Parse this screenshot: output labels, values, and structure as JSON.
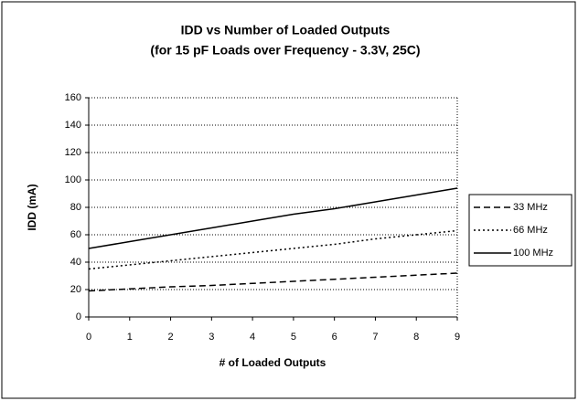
{
  "chart_data": {
    "type": "line",
    "title": "IDD vs Number of Loaded Outputs",
    "subtitle": "(for 15 pF Loads over Frequency - 3.3V, 25C)",
    "x_label": "# of Loaded Outputs",
    "y_label": "IDD (mA)",
    "x": [
      0,
      1,
      2,
      3,
      4,
      5,
      6,
      7,
      8,
      9
    ],
    "xlim": [
      0,
      9
    ],
    "xticks": [
      0,
      1,
      2,
      3,
      4,
      5,
      6,
      7,
      8,
      9
    ],
    "ylim": [
      0,
      160
    ],
    "yticks": [
      0,
      20,
      40,
      60,
      80,
      100,
      120,
      140,
      160
    ],
    "grid": true,
    "legend": "right",
    "series": [
      {
        "name": "33 MHz",
        "color": "#000000",
        "dash": "dashed",
        "values": [
          19,
          20.5,
          22,
          23,
          24.5,
          26,
          27.5,
          29,
          30.5,
          32
        ]
      },
      {
        "name": "66 MHz",
        "color": "#000000",
        "dash": "dotted",
        "values": [
          35,
          38,
          41,
          44,
          47,
          50,
          53,
          57,
          60,
          63
        ]
      },
      {
        "name": "100 MHz",
        "color": "#000000",
        "dash": "solid",
        "values": [
          50,
          55,
          60,
          65,
          70,
          75,
          79,
          84,
          89,
          94
        ]
      }
    ]
  }
}
